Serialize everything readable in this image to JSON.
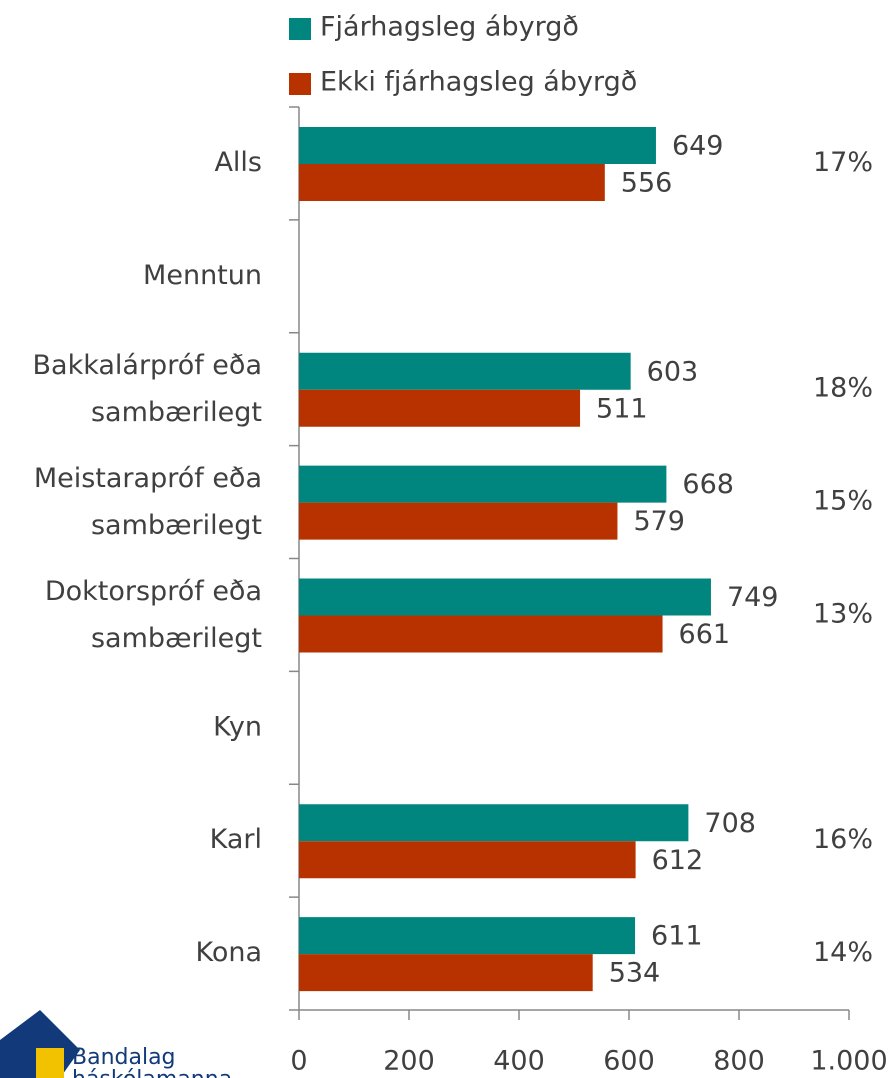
{
  "chart_data": {
    "type": "barh",
    "categories": [
      "Alls",
      "Menntun",
      "Bakkalárpróf eða sambærilegt",
      "Meistarapróf eða sambærilegt",
      "Doktorspróf eða sambærilegt",
      "Kyn",
      "Karl",
      "Kona"
    ],
    "series": [
      {
        "name": "Fjárhagsleg ábyrgð",
        "color": "#00857f",
        "values": [
          649,
          null,
          603,
          668,
          749,
          null,
          708,
          611
        ]
      },
      {
        "name": "Ekki fjárhagsleg ábyrgð",
        "color": "#b83200",
        "values": [
          556,
          null,
          511,
          579,
          661,
          null,
          612,
          534
        ]
      }
    ],
    "annotations": [
      "17%",
      null,
      "18%",
      "15%",
      "13%",
      null,
      "16%",
      "14%"
    ],
    "xlim": [
      0,
      1000
    ],
    "xticks": [
      0,
      200,
      400,
      600,
      800,
      {
        "value": 1000,
        "label": "1.000"
      }
    ],
    "legend": "top",
    "logo_text": [
      "Bandalag",
      "háskólamanna"
    ]
  }
}
